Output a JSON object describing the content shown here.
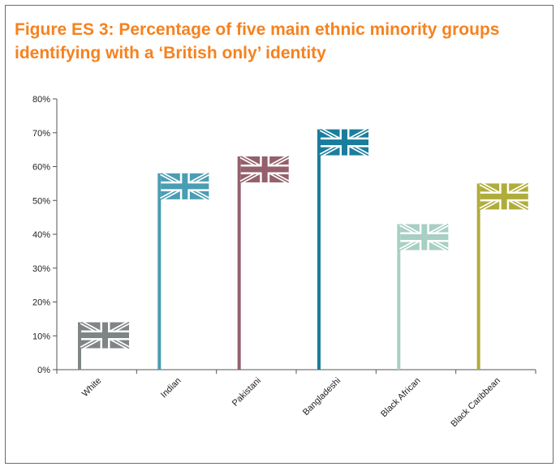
{
  "chart_data": {
    "type": "bar",
    "title_line1": "Figure ES 3: Percentage of five main ethnic minority groups",
    "title_line2": "identifying with a ‘British only’ identity",
    "categories": [
      "White",
      "Indian",
      "Pakistani",
      "Bangladeshi",
      "Black African",
      "Black Caribbean"
    ],
    "values": [
      14,
      58,
      63,
      71,
      43,
      55
    ],
    "colors": [
      "#7f8585",
      "#4a9db3",
      "#93606c",
      "#1b7d9c",
      "#a7cfc3",
      "#b0ac3a"
    ],
    "ylim": [
      0,
      80
    ],
    "yticks": [
      "0%",
      "10%",
      "20%",
      "30%",
      "40%",
      "50%",
      "60%",
      "70%",
      "80%"
    ],
    "xlabel": "",
    "ylabel": "",
    "grid": false,
    "marker": "union-flag"
  }
}
